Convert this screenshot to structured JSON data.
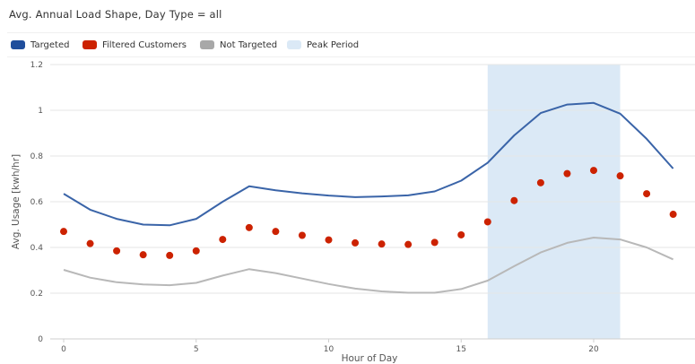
{
  "title": "Avg. Annual Load Shape, Day Type = all",
  "legend": [
    {
      "label": "Targeted",
      "color": "#1f4e9c"
    },
    {
      "label": "Filtered Customers",
      "color": "#cc2200"
    },
    {
      "label": "Not Targeted",
      "color": "#a8a8a8"
    },
    {
      "label": "Peak Period",
      "color": "#dbe9f6"
    }
  ],
  "chart_data": {
    "type": "line",
    "xlabel": "Hour of Day",
    "ylabel": "Avg. Usage [kwh/hr]",
    "xlim": [
      -0.5,
      23.5
    ],
    "ylim": [
      0,
      1.2
    ],
    "x_ticks": [
      0,
      5,
      10,
      15,
      20
    ],
    "y_ticks": [
      0,
      0.2,
      0.4,
      0.6,
      0.8,
      1,
      1.2
    ],
    "y_tick_labels": [
      "0",
      "0.2",
      "0.4",
      "0.6",
      "0.8",
      "1",
      "1.2"
    ],
    "x": [
      0,
      1,
      2,
      3,
      4,
      5,
      6,
      7,
      8,
      9,
      10,
      11,
      12,
      13,
      14,
      15,
      16,
      17,
      18,
      19,
      20,
      21,
      22,
      23
    ],
    "peak_period": [
      16,
      21
    ],
    "series": [
      {
        "name": "Targeted",
        "style": "line",
        "color": "#3a64a8",
        "values": [
          0.635,
          0.565,
          0.525,
          0.5,
          0.497,
          0.525,
          0.6,
          0.668,
          0.65,
          0.637,
          0.627,
          0.62,
          0.623,
          0.628,
          0.645,
          0.692,
          0.77,
          0.89,
          0.988,
          1.025,
          1.032,
          0.985,
          0.875,
          0.745
        ]
      },
      {
        "name": "Filtered Customers",
        "style": "dots",
        "color": "#cc2200",
        "values": [
          0.47,
          0.417,
          0.385,
          0.368,
          0.365,
          0.385,
          0.435,
          0.487,
          0.47,
          0.453,
          0.433,
          0.42,
          0.415,
          0.413,
          0.422,
          0.455,
          0.512,
          0.605,
          0.683,
          0.723,
          0.737,
          0.713,
          0.635,
          0.545
        ]
      },
      {
        "name": "Not Targeted",
        "style": "line",
        "color": "#b8b8b8",
        "values": [
          0.302,
          0.268,
          0.248,
          0.238,
          0.235,
          0.245,
          0.277,
          0.305,
          0.288,
          0.264,
          0.24,
          0.22,
          0.208,
          0.202,
          0.202,
          0.218,
          0.255,
          0.318,
          0.378,
          0.42,
          0.443,
          0.435,
          0.4,
          0.348
        ]
      }
    ]
  }
}
